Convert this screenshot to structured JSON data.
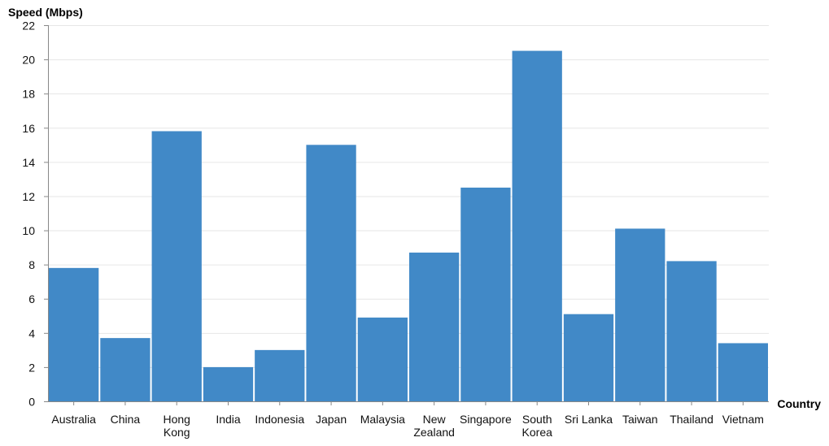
{
  "chart_data": {
    "type": "bar",
    "title": "",
    "xlabel": "Country",
    "ylabel": "Speed (Mbps)",
    "ylim": [
      0,
      22
    ],
    "yticks": [
      0,
      2,
      4,
      6,
      8,
      10,
      12,
      14,
      16,
      18,
      20,
      22
    ],
    "grid": true,
    "legend": "none",
    "bar_color": "#4189c7",
    "categories": [
      "Australia",
      "China",
      "Hong Kong",
      "India",
      "Indonesia",
      "Japan",
      "Malaysia",
      "New Zealand",
      "Singapore",
      "South Korea",
      "Sri Lanka",
      "Taiwan",
      "Thailand",
      "Vietnam"
    ],
    "category_lines": [
      [
        "Australia"
      ],
      [
        "China"
      ],
      [
        "Hong",
        "Kong"
      ],
      [
        "India"
      ],
      [
        "Indonesia"
      ],
      [
        "Japan"
      ],
      [
        "Malaysia"
      ],
      [
        "New",
        "Zealand"
      ],
      [
        "Singapore"
      ],
      [
        "South",
        "Korea"
      ],
      [
        "Sri Lanka"
      ],
      [
        "Taiwan"
      ],
      [
        "Thailand"
      ],
      [
        "Vietnam"
      ]
    ],
    "values": [
      7.8,
      3.7,
      15.8,
      2.0,
      3.0,
      15.0,
      4.9,
      8.7,
      12.5,
      20.5,
      5.1,
      10.1,
      8.2,
      3.4
    ]
  }
}
